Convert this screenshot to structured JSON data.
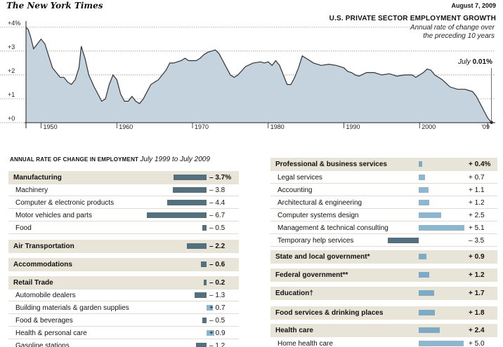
{
  "masthead": "The New York Times",
  "date": "August 7, 2009",
  "chart_data": [
    {
      "type": "area",
      "title": "U.S. PRIVATE SECTOR EMPLOYMENT GROWTH",
      "subtitle": [
        "Annual rate of change over",
        "the preceding 10 years"
      ],
      "annotation": {
        "label": "July",
        "value": "0.01%"
      },
      "y_ticks": [
        "+4%",
        "+3",
        "+2",
        "+1",
        "+0"
      ],
      "x_ticks": [
        "1950",
        "1960",
        "1970",
        "1980",
        "1990",
        "2000",
        "'09"
      ],
      "xlim": [
        1948,
        2010
      ],
      "ylim": [
        0,
        4.2
      ],
      "x": [
        1948.0,
        1948.3,
        1948.6,
        1949.0,
        1949.5,
        1950.0,
        1950.5,
        1951.0,
        1951.5,
        1952.0,
        1952.5,
        1953.0,
        1953.5,
        1954.0,
        1954.5,
        1955.0,
        1955.3,
        1955.8,
        1956.3,
        1957.0,
        1957.5,
        1958.0,
        1958.5,
        1959.0,
        1959.5,
        1960.0,
        1960.5,
        1961.0,
        1961.5,
        1962.0,
        1962.5,
        1963.0,
        1963.5,
        1964.0,
        1964.5,
        1965.0,
        1965.5,
        1966.0,
        1966.5,
        1967.0,
        1967.5,
        1968.0,
        1968.5,
        1969.0,
        1969.5,
        1970.0,
        1970.5,
        1971.0,
        1971.5,
        1972.0,
        1972.5,
        1973.0,
        1973.5,
        1974.0,
        1974.5,
        1975.0,
        1975.5,
        1976.0,
        1977.0,
        1978.0,
        1979.0,
        1979.5,
        1980.0,
        1980.5,
        1981.0,
        1981.5,
        1982.0,
        1982.5,
        1983.0,
        1983.5,
        1984.0,
        1984.5,
        1985.0,
        1986.0,
        1987.0,
        1988.0,
        1989.0,
        1990.0,
        1990.5,
        1991.0,
        1991.5,
        1992.0,
        1993.0,
        1994.0,
        1995.0,
        1996.0,
        1997.0,
        1998.0,
        1999.0,
        1999.5,
        2000.0,
        2000.5,
        2001.0,
        2001.5,
        2002.0,
        2002.5,
        2003.0,
        2004.0,
        2005.0,
        2005.5,
        2006.0,
        2006.5,
        2007.0,
        2007.5,
        2008.0,
        2008.5,
        2009.0,
        2009.5
      ],
      "y": [
        4.0,
        3.9,
        3.6,
        3.1,
        3.3,
        3.5,
        3.3,
        2.8,
        2.3,
        2.1,
        1.9,
        1.9,
        1.7,
        1.6,
        1.8,
        2.3,
        3.2,
        2.7,
        2.0,
        1.5,
        1.2,
        0.9,
        1.0,
        1.6,
        2.0,
        1.8,
        1.2,
        0.9,
        0.9,
        1.1,
        0.9,
        0.8,
        1.0,
        1.3,
        1.6,
        1.7,
        1.8,
        2.0,
        2.2,
        2.5,
        2.5,
        2.55,
        2.6,
        2.7,
        2.6,
        2.6,
        2.6,
        2.7,
        2.85,
        2.95,
        3.0,
        3.05,
        2.9,
        2.6,
        2.3,
        2.0,
        1.9,
        2.0,
        2.35,
        2.5,
        2.55,
        2.5,
        2.55,
        2.4,
        2.6,
        2.4,
        2.0,
        1.6,
        1.6,
        1.9,
        2.3,
        2.8,
        2.7,
        2.5,
        2.4,
        2.45,
        2.4,
        2.3,
        2.15,
        2.1,
        2.0,
        1.95,
        2.1,
        2.1,
        2.0,
        2.05,
        1.95,
        2.0,
        2.0,
        1.9,
        2.0,
        2.1,
        2.25,
        2.2,
        2.0,
        1.9,
        1.8,
        1.5,
        1.4,
        1.4,
        1.4,
        1.35,
        1.3,
        1.1,
        0.8,
        0.5,
        0.2,
        0.01
      ],
      "grid": true
    },
    {
      "type": "bar",
      "title": "ANNUAL RATE OF CHANGE IN EMPLOYMENT",
      "period": "July 1999 to July 2009",
      "columns": [
        {
          "rows": [
            {
              "label": "Manufacturing",
              "value": -3.7,
              "display": "– 3.7%",
              "header": true
            },
            {
              "label": "Machinery",
              "value": -3.8,
              "display": "– 3.8",
              "header": false
            },
            {
              "label": "Computer & electronic products",
              "value": -4.4,
              "display": "– 4.4",
              "header": false
            },
            {
              "label": "Motor vehicles and parts",
              "value": -6.7,
              "display": "– 6.7",
              "header": false
            },
            {
              "label": "Food",
              "value": -0.5,
              "display": "– 0.5",
              "header": false
            },
            {
              "label": "Air Transportation",
              "value": -2.2,
              "display": "– 2.2",
              "header": true
            },
            {
              "label": "Accommodations",
              "value": -0.6,
              "display": "– 0.6",
              "header": true
            },
            {
              "label": "Retail Trade",
              "value": -0.2,
              "display": "– 0.2",
              "header": true
            },
            {
              "label": "Automobile dealers",
              "value": -1.3,
              "display": "– 1.3",
              "header": false
            },
            {
              "label": "Building materials & garden supplies",
              "value": 0.7,
              "display": "+ 0.7",
              "header": false
            },
            {
              "label": "Food & beverages",
              "value": -0.5,
              "display": "– 0.5",
              "header": false
            },
            {
              "label": "Health & personal care",
              "value": 0.9,
              "display": "+ 0.9",
              "header": false
            },
            {
              "label": "Gasoline stations",
              "value": -1.2,
              "display": "– 1.2",
              "header": false
            }
          ]
        },
        {
          "rows": [
            {
              "label": "Professional & business services",
              "value": 0.4,
              "display": "+ 0.4%",
              "header": true
            },
            {
              "label": "Legal services",
              "value": 0.7,
              "display": "+ 0.7",
              "header": false
            },
            {
              "label": "Accounting",
              "value": 1.1,
              "display": "+ 1.1",
              "header": false
            },
            {
              "label": "Architectural & engineering",
              "value": 1.2,
              "display": "+ 1.2",
              "header": false
            },
            {
              "label": "Computer systems design",
              "value": 2.5,
              "display": "+ 2.5",
              "header": false
            },
            {
              "label": "Management & technical consulting",
              "value": 5.1,
              "display": "+ 5.1",
              "header": false
            },
            {
              "label": "Temporary help services",
              "value": -3.5,
              "display": "– 3.5",
              "header": false
            },
            {
              "label": "State and local government*",
              "value": 0.9,
              "display": "+ 0.9",
              "header": true
            },
            {
              "label": "Federal government**",
              "value": 1.2,
              "display": "+ 1.2",
              "header": true
            },
            {
              "label": "Education†",
              "value": 1.7,
              "display": "+ 1.7",
              "header": true
            },
            {
              "label": "Food services & drinking places",
              "value": 1.8,
              "display": "+ 1.8",
              "header": true
            },
            {
              "label": "Health care",
              "value": 2.4,
              "display": "+ 2.4",
              "header": true
            },
            {
              "label": "Home health care",
              "value": 5.0,
              "display": "+ 5.0",
              "header": false
            }
          ]
        }
      ]
    }
  ]
}
